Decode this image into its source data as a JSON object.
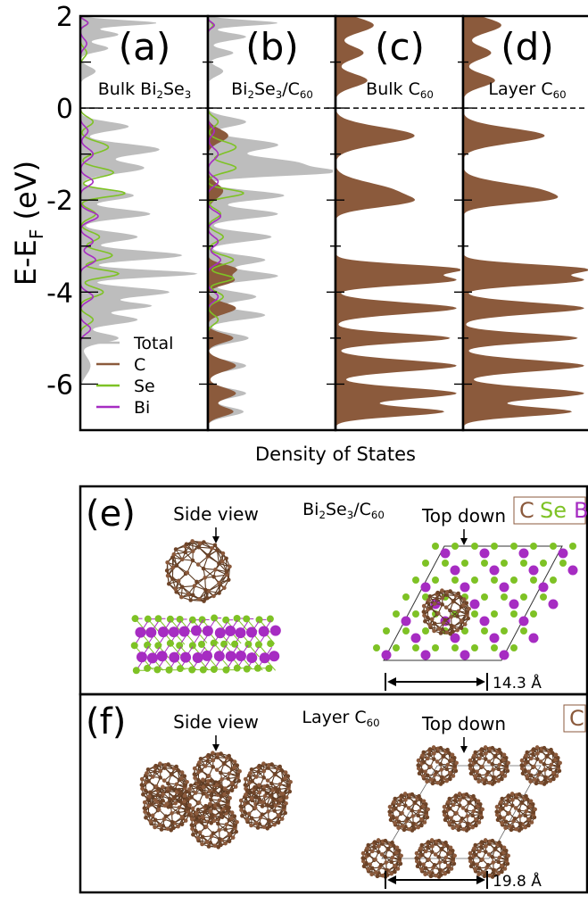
{
  "chart_data": {
    "type": "area",
    "ylabel": {
      "main": "E-E",
      "sub": "F",
      "tail": " (eV)"
    },
    "xlabel": "Density of States",
    "ylim": [
      -7,
      2
    ],
    "yticks": [
      2,
      0,
      -2,
      -4,
      -6
    ],
    "fermi_level": 0,
    "panels": [
      {
        "letter": "(a)",
        "label_parts": [
          [
            "Bulk Bi",
            ""
          ],
          [
            "2",
            "sub"
          ],
          [
            "Se",
            ""
          ],
          [
            "3",
            "sub"
          ]
        ],
        "series": [
          "Total",
          "Se",
          "Bi"
        ]
      },
      {
        "letter": "(b)",
        "label_parts": [
          [
            "Bi",
            ""
          ],
          [
            "2",
            "sub"
          ],
          [
            "Se",
            ""
          ],
          [
            "3",
            "sub"
          ],
          [
            "/C",
            ""
          ],
          [
            "60",
            "sub"
          ]
        ],
        "series": [
          "Total",
          "C",
          "Se",
          "Bi"
        ]
      },
      {
        "letter": "(c)",
        "label_parts": [
          [
            "Bulk C",
            ""
          ],
          [
            "60",
            "sub"
          ]
        ],
        "series": [
          "C"
        ]
      },
      {
        "letter": "(d)",
        "label_parts": [
          [
            "Layer C",
            ""
          ],
          [
            "60",
            "sub"
          ]
        ],
        "series": [
          "C"
        ]
      }
    ],
    "legend": {
      "placement": "bottom-left of panel (a)",
      "entries": [
        {
          "name": "Total",
          "color": "#bdbdbd"
        },
        {
          "name": "C",
          "color": "#8b5a3c"
        },
        {
          "name": "Se",
          "color": "#7ec225"
        },
        {
          "name": "Bi",
          "color": "#a62cc2"
        }
      ]
    },
    "peaks": {
      "c_bulk": [
        [
          1.8,
          0.3,
          0.16
        ],
        [
          1.2,
          0.22,
          0.14
        ],
        [
          0.6,
          0.25,
          0.14
        ],
        [
          -0.6,
          0.62,
          0.18
        ],
        [
          -1.8,
          0.44,
          0.18
        ],
        [
          -2.05,
          0.42,
          0.12
        ],
        [
          -3.5,
          0.95,
          0.1
        ],
        [
          -3.75,
          0.9,
          0.1
        ],
        [
          -4.35,
          0.95,
          0.12
        ],
        [
          -5.0,
          0.9,
          0.1
        ],
        [
          -5.6,
          0.95,
          0.12
        ],
        [
          -6.2,
          0.95,
          0.12
        ],
        [
          -6.6,
          0.85,
          0.1
        ]
      ],
      "c_layer": [
        [
          1.8,
          0.3,
          0.16
        ],
        [
          1.2,
          0.22,
          0.14
        ],
        [
          0.6,
          0.25,
          0.14
        ],
        [
          -0.6,
          0.64,
          0.16
        ],
        [
          -1.8,
          0.6,
          0.16
        ],
        [
          -2.0,
          0.4,
          0.1
        ],
        [
          -3.5,
          0.95,
          0.1
        ],
        [
          -3.75,
          0.9,
          0.1
        ],
        [
          -4.35,
          0.95,
          0.12
        ],
        [
          -5.0,
          0.9,
          0.1
        ],
        [
          -5.6,
          0.95,
          0.12
        ],
        [
          -6.2,
          0.95,
          0.12
        ],
        [
          -6.6,
          0.85,
          0.1
        ]
      ],
      "total_a": [
        [
          1.85,
          0.6,
          0.06
        ],
        [
          1.6,
          0.3,
          0.08
        ],
        [
          1.3,
          0.22,
          0.08
        ],
        [
          0.8,
          0.12,
          0.1
        ],
        [
          -0.4,
          0.38,
          0.1
        ],
        [
          -0.9,
          0.62,
          0.12
        ],
        [
          -1.3,
          0.5,
          0.12
        ],
        [
          -1.9,
          0.42,
          0.1
        ],
        [
          -2.3,
          0.55,
          0.1
        ],
        [
          -2.8,
          0.45,
          0.1
        ],
        [
          -3.2,
          0.8,
          0.1
        ],
        [
          -3.6,
          0.92,
          0.08
        ],
        [
          -4.0,
          0.7,
          0.1
        ],
        [
          -4.3,
          0.55,
          0.08
        ],
        [
          -4.6,
          0.45,
          0.1
        ],
        [
          -5.0,
          0.3,
          0.1
        ],
        [
          -5.6,
          0.08,
          0.2
        ]
      ],
      "se_a": [
        [
          1.85,
          0.06,
          0.06
        ],
        [
          1.2,
          0.05,
          0.1
        ],
        [
          -0.3,
          0.1,
          0.1
        ],
        [
          -0.85,
          0.22,
          0.12
        ],
        [
          -1.4,
          0.26,
          0.1
        ],
        [
          -1.85,
          0.35,
          0.08
        ],
        [
          -2.3,
          0.12,
          0.1
        ],
        [
          -2.8,
          0.15,
          0.1
        ],
        [
          -3.2,
          0.25,
          0.1
        ],
        [
          -3.6,
          0.3,
          0.08
        ],
        [
          -4.0,
          0.18,
          0.1
        ],
        [
          -4.6,
          0.1,
          0.1
        ]
      ],
      "bi_a": [
        [
          1.85,
          0.06,
          0.06
        ],
        [
          1.4,
          0.05,
          0.1
        ],
        [
          -0.5,
          0.06,
          0.1
        ],
        [
          -1.0,
          0.1,
          0.12
        ],
        [
          -1.6,
          0.1,
          0.1
        ],
        [
          -2.35,
          0.14,
          0.1
        ],
        [
          -2.9,
          0.1,
          0.1
        ],
        [
          -3.3,
          0.12,
          0.1
        ],
        [
          -4.1,
          0.1,
          0.1
        ],
        [
          -4.8,
          0.08,
          0.1
        ]
      ],
      "total_b": [
        [
          1.85,
          0.55,
          0.06
        ],
        [
          1.55,
          0.3,
          0.08
        ],
        [
          1.2,
          0.2,
          0.08
        ],
        [
          0.8,
          0.12,
          0.1
        ],
        [
          -0.3,
          0.3,
          0.1
        ],
        [
          -0.8,
          0.55,
          0.12
        ],
        [
          -1.2,
          0.7,
          0.12
        ],
        [
          -1.4,
          0.85,
          0.08
        ],
        [
          -1.9,
          0.6,
          0.1
        ],
        [
          -2.3,
          0.55,
          0.1
        ],
        [
          -2.8,
          0.5,
          0.1
        ],
        [
          -3.3,
          0.45,
          0.1
        ],
        [
          -3.65,
          0.55,
          0.1
        ],
        [
          -4.1,
          0.38,
          0.1
        ],
        [
          -4.5,
          0.45,
          0.1
        ],
        [
          -5.0,
          0.32,
          0.1
        ],
        [
          -5.6,
          0.3,
          0.1
        ],
        [
          -6.2,
          0.3,
          0.1
        ],
        [
          -6.6,
          0.28,
          0.1
        ]
      ],
      "c_b": [
        [
          -0.6,
          0.16,
          0.14
        ],
        [
          -1.8,
          0.12,
          0.16
        ],
        [
          -3.5,
          0.22,
          0.1
        ],
        [
          -3.75,
          0.2,
          0.1
        ],
        [
          -4.35,
          0.22,
          0.12
        ],
        [
          -5.0,
          0.2,
          0.1
        ],
        [
          -5.6,
          0.22,
          0.12
        ],
        [
          -6.2,
          0.22,
          0.12
        ],
        [
          -6.6,
          0.2,
          0.1
        ]
      ],
      "se_b": [
        [
          1.8,
          0.04,
          0.06
        ],
        [
          -0.3,
          0.08,
          0.1
        ],
        [
          -0.85,
          0.22,
          0.12
        ],
        [
          -1.3,
          0.22,
          0.1
        ],
        [
          -1.85,
          0.28,
          0.08
        ],
        [
          -2.3,
          0.1,
          0.1
        ],
        [
          -2.8,
          0.12,
          0.1
        ],
        [
          -3.3,
          0.2,
          0.1
        ],
        [
          -3.7,
          0.2,
          0.08
        ],
        [
          -4.1,
          0.12,
          0.1
        ],
        [
          -4.6,
          0.08,
          0.1
        ]
      ],
      "bi_b": [
        [
          1.8,
          0.05,
          0.06
        ],
        [
          -0.5,
          0.05,
          0.1
        ],
        [
          -1.0,
          0.08,
          0.12
        ],
        [
          -1.6,
          0.08,
          0.1
        ],
        [
          -2.35,
          0.1,
          0.1
        ],
        [
          -2.9,
          0.08,
          0.1
        ],
        [
          -3.3,
          0.1,
          0.1
        ],
        [
          -4.1,
          0.08,
          0.1
        ]
      ]
    }
  },
  "structures": {
    "e": {
      "letter": "(e)",
      "side_view": "Side view",
      "top_down": "Top down",
      "title_parts": [
        [
          "Bi",
          ""
        ],
        [
          "2",
          "sub"
        ],
        [
          "Se",
          ""
        ],
        [
          "3",
          "sub"
        ],
        [
          "/C",
          ""
        ],
        [
          "60",
          "sub"
        ]
      ],
      "legend": [
        {
          "text": "C",
          "color": "#8b5a3c"
        },
        {
          "text": "Se",
          "color": "#7ec225"
        },
        {
          "text": "Bi",
          "color": "#a62cc2"
        }
      ],
      "scale": "14.3 Å"
    },
    "f": {
      "letter": "(f)",
      "side_view": "Side view",
      "top_down": "Top down",
      "title_parts": [
        [
          "Layer C",
          ""
        ],
        [
          "60",
          "sub"
        ]
      ],
      "legend": [
        {
          "text": "C",
          "color": "#8b5a3c"
        }
      ],
      "scale": "19.8 Å"
    }
  }
}
